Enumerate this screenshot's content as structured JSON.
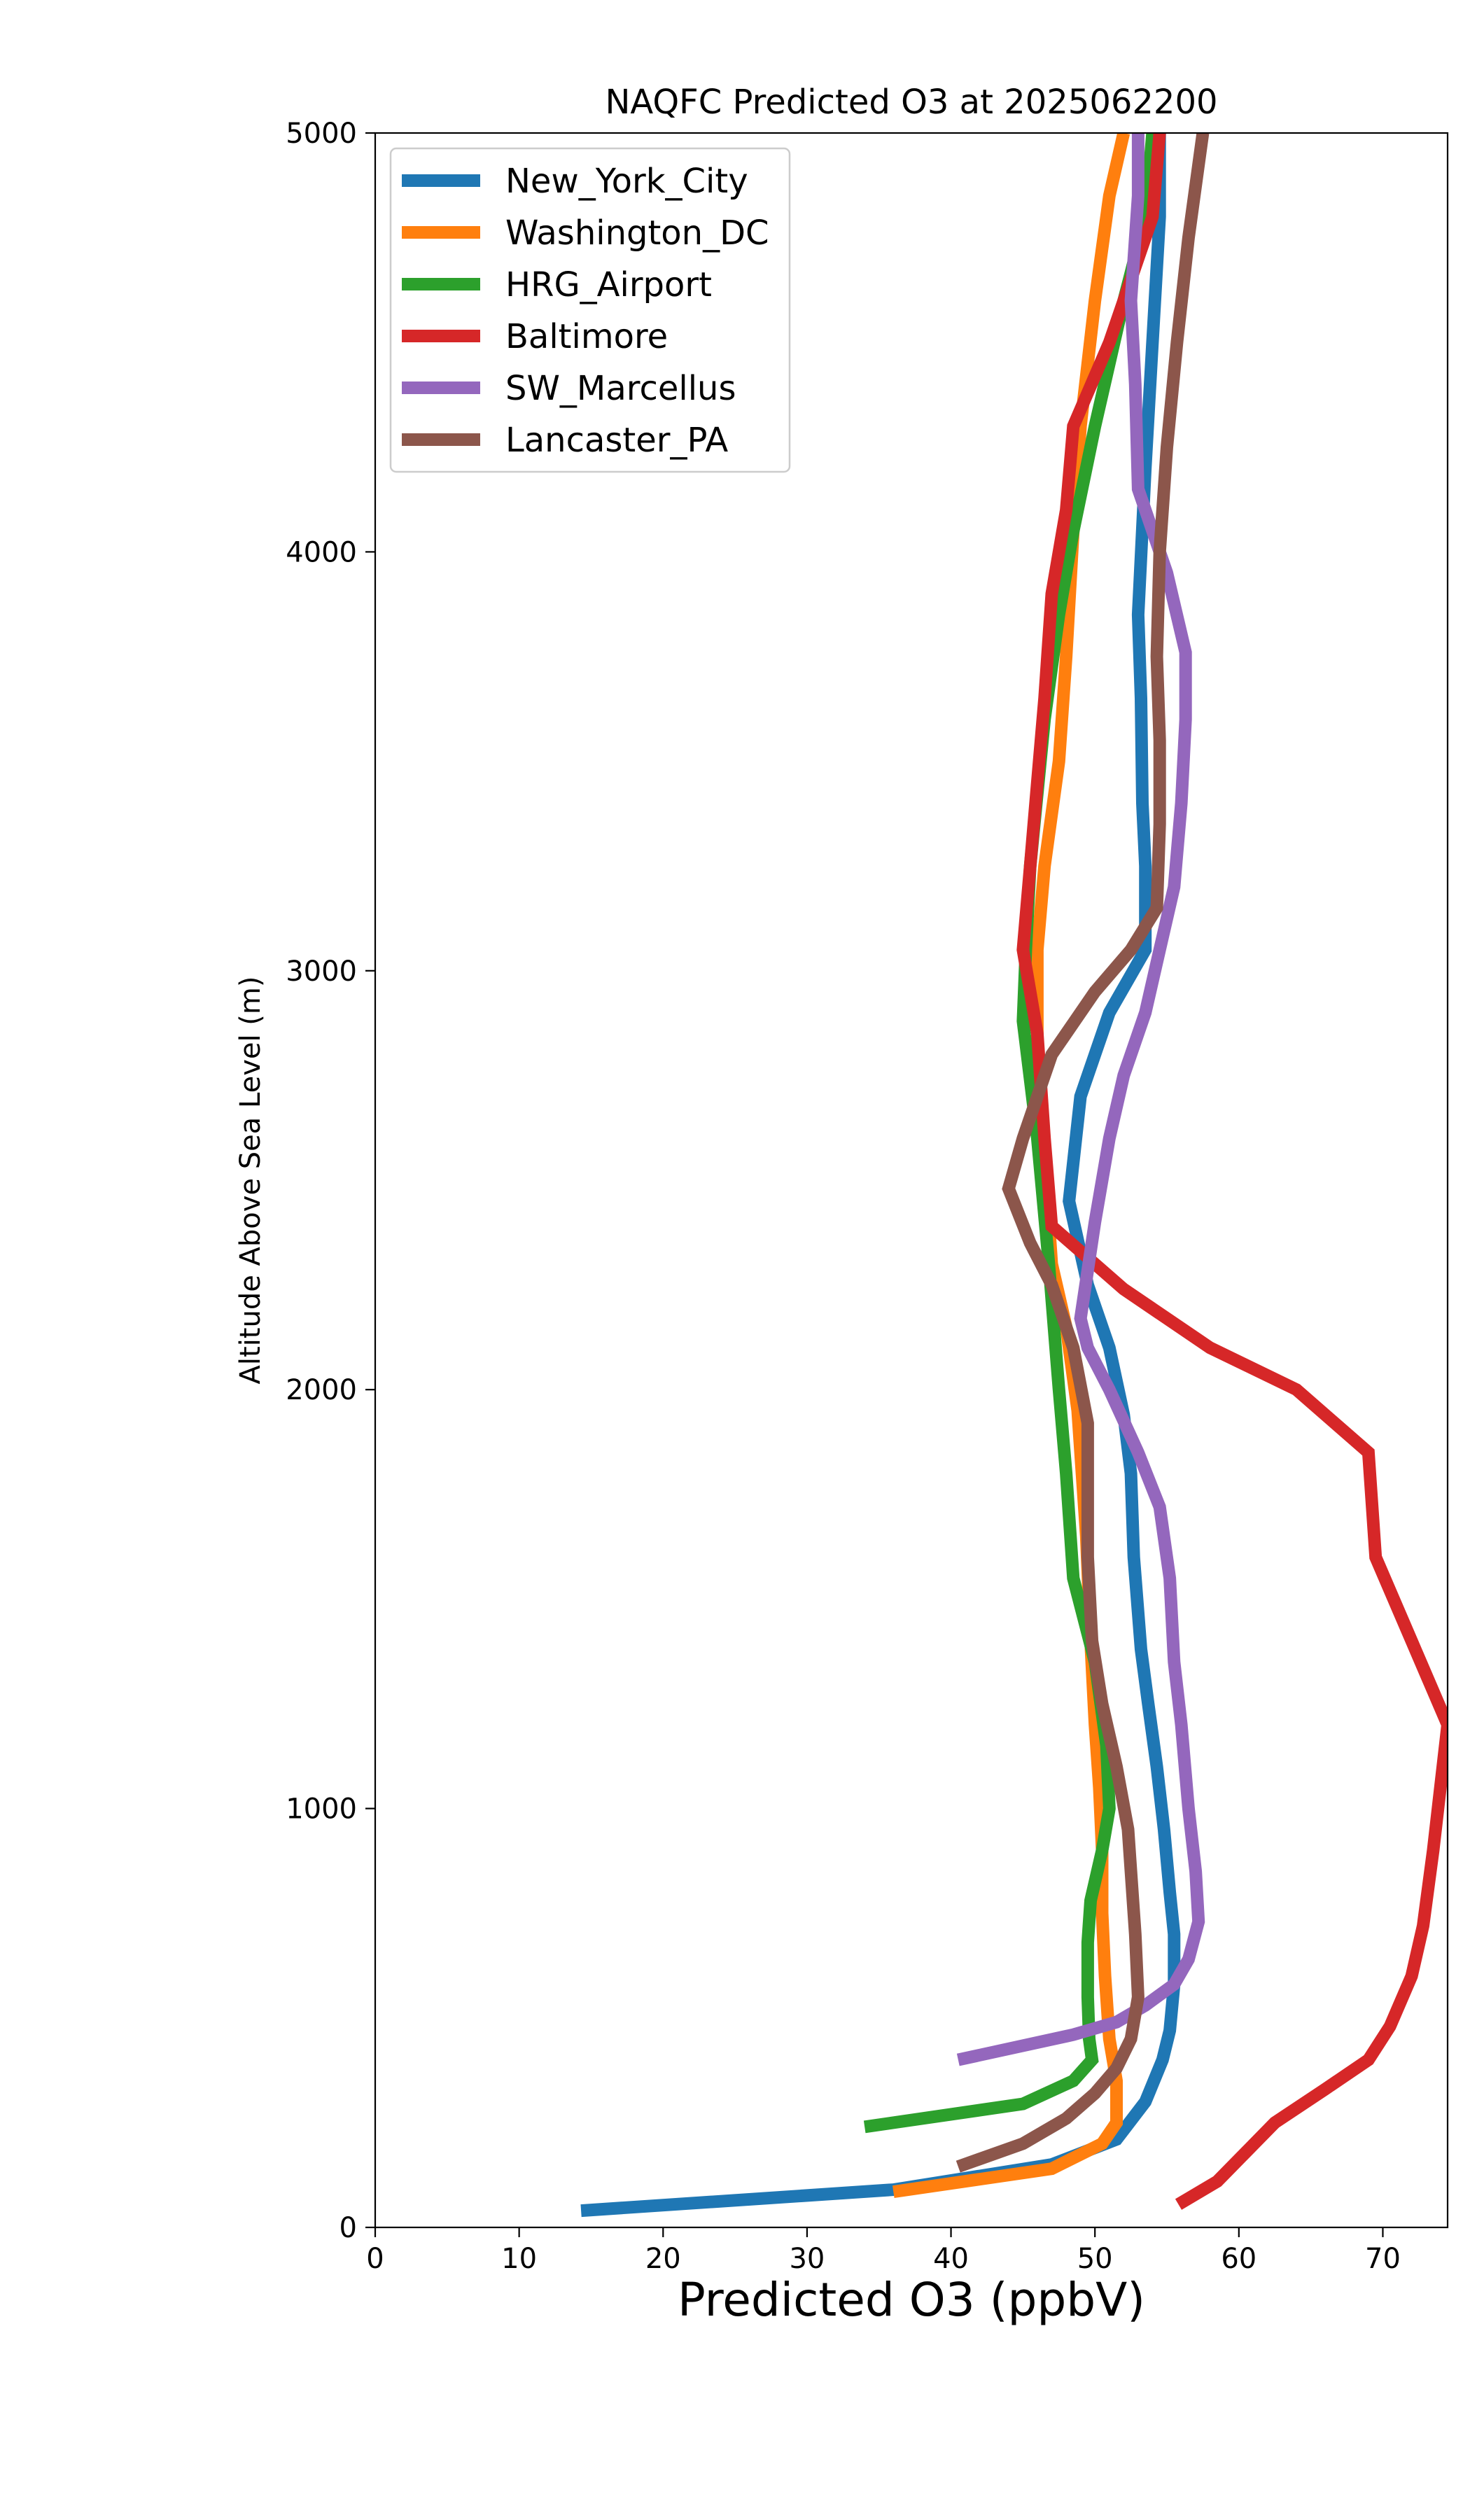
{
  "chart_data": {
    "type": "line",
    "title": "NAQFC Predicted O3 at 2025062200",
    "xlabel": "Predicted O3 (ppbV)",
    "ylabel": "Altitude Above Sea Level (m)",
    "xlim": [
      0,
      74.5
    ],
    "ylim": [
      0,
      5000
    ],
    "xticks": [
      0,
      10,
      20,
      30,
      40,
      50,
      60,
      70
    ],
    "yticks": [
      0,
      1000,
      2000,
      3000,
      4000,
      5000
    ],
    "xtick_labels": [
      "0",
      "10",
      "20",
      "30",
      "40",
      "50",
      "60",
      "70"
    ],
    "ytick_labels": [
      "0",
      "1000",
      "2000",
      "3000",
      "4000",
      "5000"
    ],
    "grid": false,
    "legend_position": "upper-left",
    "series": [
      {
        "name": "New_York_City",
        "color": "#1f77b4",
        "points": [
          [
            14.3,
            40
          ],
          [
            36,
            90
          ],
          [
            47,
            150
          ],
          [
            51.5,
            210
          ],
          [
            53.5,
            300
          ],
          [
            54.7,
            400
          ],
          [
            55.2,
            470
          ],
          [
            55.5,
            580
          ],
          [
            55.5,
            700
          ],
          [
            55.2,
            800
          ],
          [
            54.8,
            950
          ],
          [
            54.3,
            1100
          ],
          [
            53.7,
            1250
          ],
          [
            53.2,
            1380
          ],
          [
            52.7,
            1600
          ],
          [
            52.5,
            1800
          ],
          [
            52,
            1940
          ],
          [
            51,
            2100
          ],
          [
            49.5,
            2250
          ],
          [
            48.2,
            2450
          ],
          [
            49,
            2700
          ],
          [
            51,
            2900
          ],
          [
            53.5,
            3050
          ],
          [
            53.5,
            3250
          ],
          [
            53.3,
            3400
          ],
          [
            53.2,
            3650
          ],
          [
            53,
            3850
          ],
          [
            53.5,
            4200
          ],
          [
            54,
            4500
          ],
          [
            54.5,
            4800
          ],
          [
            54.5,
            5000
          ]
        ]
      },
      {
        "name": "Washington_DC",
        "color": "#ff7f0e",
        "points": [
          [
            36,
            85
          ],
          [
            47,
            140
          ],
          [
            50.5,
            200
          ],
          [
            51.5,
            250
          ],
          [
            51.5,
            350
          ],
          [
            51,
            450
          ],
          [
            50.7,
            600
          ],
          [
            50.5,
            750
          ],
          [
            50.5,
            900
          ],
          [
            50.3,
            1050
          ],
          [
            50,
            1200
          ],
          [
            49.7,
            1400
          ],
          [
            49.4,
            1650
          ],
          [
            48.8,
            1950
          ],
          [
            48,
            2150
          ],
          [
            47,
            2300
          ],
          [
            46.5,
            2550
          ],
          [
            46,
            2800
          ],
          [
            46,
            3050
          ],
          [
            46.5,
            3250
          ],
          [
            47.5,
            3500
          ],
          [
            48,
            3750
          ],
          [
            48.5,
            4050
          ],
          [
            49,
            4300
          ],
          [
            50,
            4600
          ],
          [
            51,
            4850
          ],
          [
            52,
            5000
          ]
        ]
      },
      {
        "name": "HRG_Airport",
        "color": "#2ca02c",
        "points": [
          [
            34,
            240
          ],
          [
            45,
            295
          ],
          [
            48.5,
            350
          ],
          [
            49.8,
            400
          ],
          [
            49.6,
            450
          ],
          [
            49.5,
            550
          ],
          [
            49.5,
            680
          ],
          [
            49.7,
            780
          ],
          [
            50.5,
            900
          ],
          [
            51,
            1000
          ],
          [
            50.8,
            1150
          ],
          [
            50,
            1350
          ],
          [
            48.5,
            1550
          ],
          [
            48,
            1800
          ],
          [
            47.5,
            2000
          ],
          [
            46.8,
            2300
          ],
          [
            46,
            2600
          ],
          [
            45,
            2880
          ],
          [
            45.2,
            3050
          ],
          [
            45.5,
            3250
          ],
          [
            46.5,
            3600
          ],
          [
            47.5,
            3850
          ],
          [
            48.5,
            4050
          ],
          [
            50,
            4300
          ],
          [
            52,
            4600
          ],
          [
            53.5,
            4800
          ],
          [
            54,
            5000
          ]
        ]
      },
      {
        "name": "Baltimore",
        "color": "#d62728",
        "points": [
          [
            55.8,
            55
          ],
          [
            58.5,
            110
          ],
          [
            60.5,
            180
          ],
          [
            62.5,
            250
          ],
          [
            66,
            330
          ],
          [
            69,
            400
          ],
          [
            70.5,
            480
          ],
          [
            72,
            600
          ],
          [
            72.8,
            720
          ],
          [
            73.5,
            900
          ],
          [
            74,
            1050
          ],
          [
            74.5,
            1200
          ],
          [
            72,
            1400
          ],
          [
            69.5,
            1600
          ],
          [
            69,
            1850
          ],
          [
            64,
            2000
          ],
          [
            58,
            2100
          ],
          [
            52,
            2240
          ],
          [
            47,
            2390
          ],
          [
            46.5,
            2600
          ],
          [
            46,
            2850
          ],
          [
            45,
            3050
          ],
          [
            45.5,
            3250
          ],
          [
            46,
            3450
          ],
          [
            46.5,
            3650
          ],
          [
            47,
            3900
          ],
          [
            48,
            4100
          ],
          [
            48.5,
            4300
          ],
          [
            51,
            4500
          ],
          [
            54,
            4800
          ],
          [
            54.5,
            5000
          ]
        ]
      },
      {
        "name": "SW_Marcellus",
        "color": "#9467bd",
        "points": [
          [
            40.5,
            400
          ],
          [
            48.5,
            460
          ],
          [
            51.5,
            490
          ],
          [
            53.5,
            530
          ],
          [
            55.5,
            580
          ],
          [
            56.5,
            640
          ],
          [
            57.2,
            730
          ],
          [
            57,
            850
          ],
          [
            56.5,
            1000
          ],
          [
            56,
            1200
          ],
          [
            55.5,
            1350
          ],
          [
            55.2,
            1550
          ],
          [
            54.5,
            1720
          ],
          [
            53,
            1850
          ],
          [
            51,
            2000
          ],
          [
            49.5,
            2100
          ],
          [
            49,
            2170
          ],
          [
            50,
            2400
          ],
          [
            51,
            2600
          ],
          [
            52,
            2750
          ],
          [
            53.5,
            2900
          ],
          [
            54.5,
            3050
          ],
          [
            55.5,
            3200
          ],
          [
            56,
            3400
          ],
          [
            56.3,
            3600
          ],
          [
            56.3,
            3760
          ],
          [
            55,
            3950
          ],
          [
            53,
            4150
          ],
          [
            52.8,
            4400
          ],
          [
            52.5,
            4600
          ],
          [
            53,
            4850
          ],
          [
            53,
            5000
          ]
        ]
      },
      {
        "name": "Lancaster_PA",
        "color": "#8c564b",
        "points": [
          [
            40.5,
            145
          ],
          [
            45,
            200
          ],
          [
            48,
            260
          ],
          [
            50,
            320
          ],
          [
            51.5,
            380
          ],
          [
            52.5,
            450
          ],
          [
            53,
            550
          ],
          [
            52.8,
            700
          ],
          [
            52.5,
            850
          ],
          [
            52.3,
            950
          ],
          [
            51.5,
            1100
          ],
          [
            50.5,
            1250
          ],
          [
            49.8,
            1400
          ],
          [
            49.5,
            1600
          ],
          [
            49.5,
            1800
          ],
          [
            49.5,
            1920
          ],
          [
            48.5,
            2100
          ],
          [
            47,
            2250
          ],
          [
            45.5,
            2350
          ],
          [
            44,
            2480
          ],
          [
            45,
            2600
          ],
          [
            47,
            2800
          ],
          [
            50,
            2950
          ],
          [
            52.5,
            3050
          ],
          [
            54.3,
            3150
          ],
          [
            54.5,
            3350
          ],
          [
            54.5,
            3550
          ],
          [
            54.3,
            3750
          ],
          [
            54.5,
            4000
          ],
          [
            55,
            4250
          ],
          [
            55.7,
            4500
          ],
          [
            56.5,
            4750
          ],
          [
            57.5,
            5000
          ]
        ]
      }
    ]
  }
}
